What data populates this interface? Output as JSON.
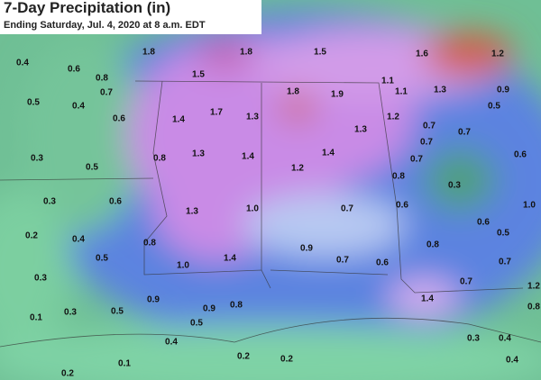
{
  "header": {
    "title": "7-Day Precipitation (in)",
    "subtitle": "Ending Saturday, Jul. 4, 2020 at 8 a.m. EDT"
  },
  "precip_labels": [
    "0.4",
    "1.8",
    "1.8",
    "1.5",
    "1.6",
    "1.2",
    "0.6",
    "0.8",
    "1.5",
    "1.1",
    "0.7",
    "0.5",
    "0.4",
    "1.7",
    "1.8",
    "1.9",
    "1.1",
    "1.3",
    "0.9",
    "0.5",
    "0.6",
    "1.4",
    "1.3",
    "1.2",
    "0.7",
    "0.7",
    "1.3",
    "0.7",
    "0.3",
    "0.5",
    "0.8",
    "1.3",
    "1.4",
    "1.4",
    "0.7",
    "0.6",
    "1.2",
    "0.8",
    "0.3",
    "0.3",
    "0.6",
    "1.0",
    "0.7",
    "0.6",
    "1.0",
    "1.3",
    "0.6",
    "0.2",
    "0.4",
    "0.8",
    "0.9",
    "0.5",
    "0.8",
    "0.5",
    "1.4",
    "1.0",
    "0.7",
    "0.6",
    "0.7",
    "0.3",
    "0.7",
    "1.2",
    "0.9",
    "0.8",
    "1.4",
    "0.8",
    "0.3",
    "0.5",
    "0.9",
    "0.1",
    "0.5",
    "0.4",
    "0.3",
    "0.4",
    "0.2",
    "0.2",
    "0.1",
    "0.2",
    "0.4"
  ]
}
